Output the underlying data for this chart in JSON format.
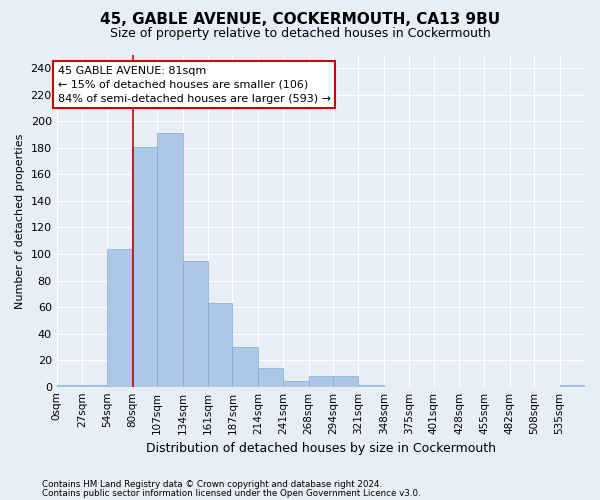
{
  "title": "45, GABLE AVENUE, COCKERMOUTH, CA13 9BU",
  "subtitle": "Size of property relative to detached houses in Cockermouth",
  "xlabel": "Distribution of detached houses by size in Cockermouth",
  "ylabel": "Number of detached properties",
  "footer1": "Contains HM Land Registry data © Crown copyright and database right 2024.",
  "footer2": "Contains public sector information licensed under the Open Government Licence v3.0.",
  "bar_labels": [
    "0sqm",
    "27sqm",
    "54sqm",
    "80sqm",
    "107sqm",
    "134sqm",
    "161sqm",
    "187sqm",
    "214sqm",
    "241sqm",
    "268sqm",
    "294sqm",
    "321sqm",
    "348sqm",
    "375sqm",
    "401sqm",
    "428sqm",
    "455sqm",
    "482sqm",
    "508sqm",
    "535sqm"
  ],
  "bar_values": [
    1,
    1,
    104,
    181,
    191,
    95,
    63,
    30,
    14,
    4,
    8,
    8,
    1,
    0,
    0,
    0,
    0,
    0,
    0,
    0,
    1
  ],
  "bar_color": "#aec6e8",
  "bar_edge_color": "#7bafd4",
  "background_color": "#e8eef5",
  "plot_bg_color": "#e8eef5",
  "grid_color": "#ffffff",
  "annotation_line1": "45 GABLE AVENUE: 81sqm",
  "annotation_line2": "← 15% of detached houses are smaller (106)",
  "annotation_line3": "84% of semi-detached houses are larger (593) →",
  "annotation_box_color": "#ffffff",
  "annotation_box_edge": "#cc0000",
  "vline_x": 81,
  "vline_color": "#cc0000",
  "ylim": [
    0,
    250
  ],
  "yticks": [
    0,
    20,
    40,
    60,
    80,
    100,
    120,
    140,
    160,
    180,
    200,
    220,
    240
  ],
  "bin_width": 27,
  "title_fontsize": 11,
  "subtitle_fontsize": 9,
  "xlabel_fontsize": 9,
  "ylabel_fontsize": 8,
  "tick_fontsize": 8,
  "xtick_fontsize": 7.5,
  "annotation_fontsize": 8
}
